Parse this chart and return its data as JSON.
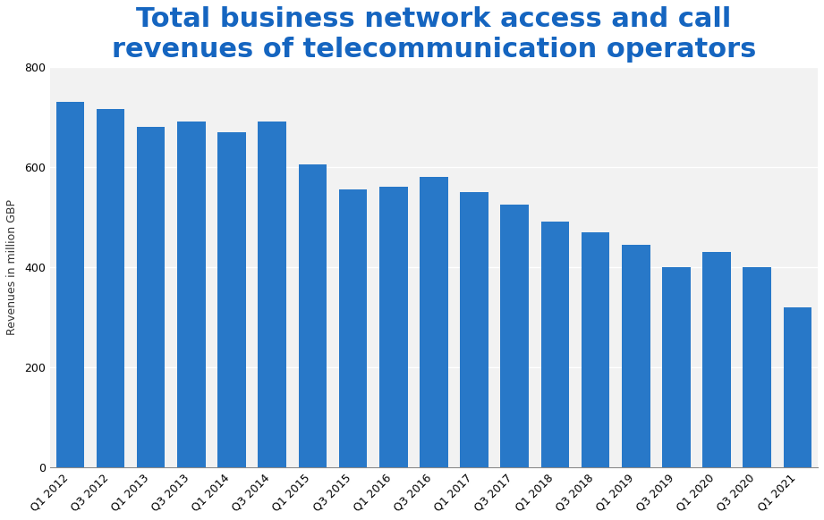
{
  "title": "Total business network access and call\nrevenues of telecommunication operators",
  "ylabel": "Revenues in million GBP",
  "categories": [
    "Q1 2012",
    "Q3 2012",
    "Q1 2013",
    "Q3 2013",
    "Q1 2014",
    "Q3 2014",
    "Q1 2015",
    "Q3 2015",
    "Q1 2016",
    "Q3 2016",
    "Q1 2017",
    "Q3 2017",
    "Q1 2018",
    "Q3 2018",
    "Q1 2019",
    "Q3 2019",
    "Q1 2020",
    "Q3 2020",
    "Q1 2021"
  ],
  "values": [
    730,
    715,
    680,
    690,
    670,
    690,
    605,
    555,
    560,
    580,
    550,
    525,
    490,
    470,
    445,
    400,
    430,
    400,
    320
  ],
  "bar_color": "#2878C8",
  "bg_color": "#ffffff",
  "plot_bg_color": "#f2f2f2",
  "title_color": "#1565c0",
  "ylabel_color": "#333333",
  "grid_color": "#ffffff",
  "ylim": [
    0,
    800
  ],
  "yticks": [
    0,
    200,
    400,
    600,
    800
  ],
  "title_fontsize": 22,
  "ylabel_fontsize": 9,
  "tick_fontsize": 9
}
